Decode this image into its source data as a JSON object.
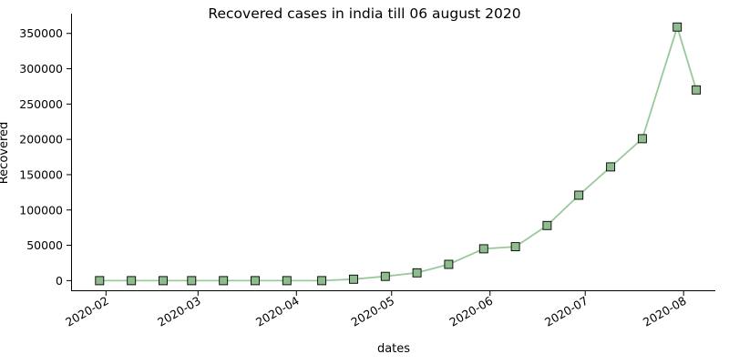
{
  "chart_data": {
    "type": "line",
    "title": "Recovered cases in india till 06 august 2020",
    "xlabel": "dates",
    "ylabel": "Recovered",
    "x_axis_type": "date",
    "xlim": [
      "2020-01-21",
      "2020-08-11"
    ],
    "ylim": [
      -15000,
      378000
    ],
    "x_ticks": [
      {
        "date": "2020-02-01",
        "label": "2020-02"
      },
      {
        "date": "2020-03-01",
        "label": "2020-03"
      },
      {
        "date": "2020-04-01",
        "label": "2020-04"
      },
      {
        "date": "2020-05-01",
        "label": "2020-05"
      },
      {
        "date": "2020-06-01",
        "label": "2020-06"
      },
      {
        "date": "2020-07-01",
        "label": "2020-07"
      },
      {
        "date": "2020-08-01",
        "label": "2020-08"
      }
    ],
    "y_ticks": [
      0,
      50000,
      100000,
      150000,
      200000,
      250000,
      300000,
      350000
    ],
    "grid": false,
    "line_color": "#99c99b",
    "marker": "square",
    "marker_color": "#8fbc8f",
    "marker_edge_color": "#000000",
    "series": [
      {
        "x": [
          "2020-01-30",
          "2020-02-09",
          "2020-02-19",
          "2020-02-28",
          "2020-03-09",
          "2020-03-19",
          "2020-03-29",
          "2020-04-09",
          "2020-04-19",
          "2020-04-29",
          "2020-05-09",
          "2020-05-19",
          "2020-05-30",
          "2020-06-09",
          "2020-06-19",
          "2020-06-29",
          "2020-07-09",
          "2020-07-19",
          "2020-07-30",
          "2020-08-05"
        ],
        "y": [
          0,
          0,
          0,
          0,
          0,
          0,
          0,
          0,
          2000,
          6000,
          11000,
          23000,
          45000,
          48000,
          78000,
          121000,
          161000,
          201000,
          359000,
          270000
        ]
      }
    ]
  }
}
